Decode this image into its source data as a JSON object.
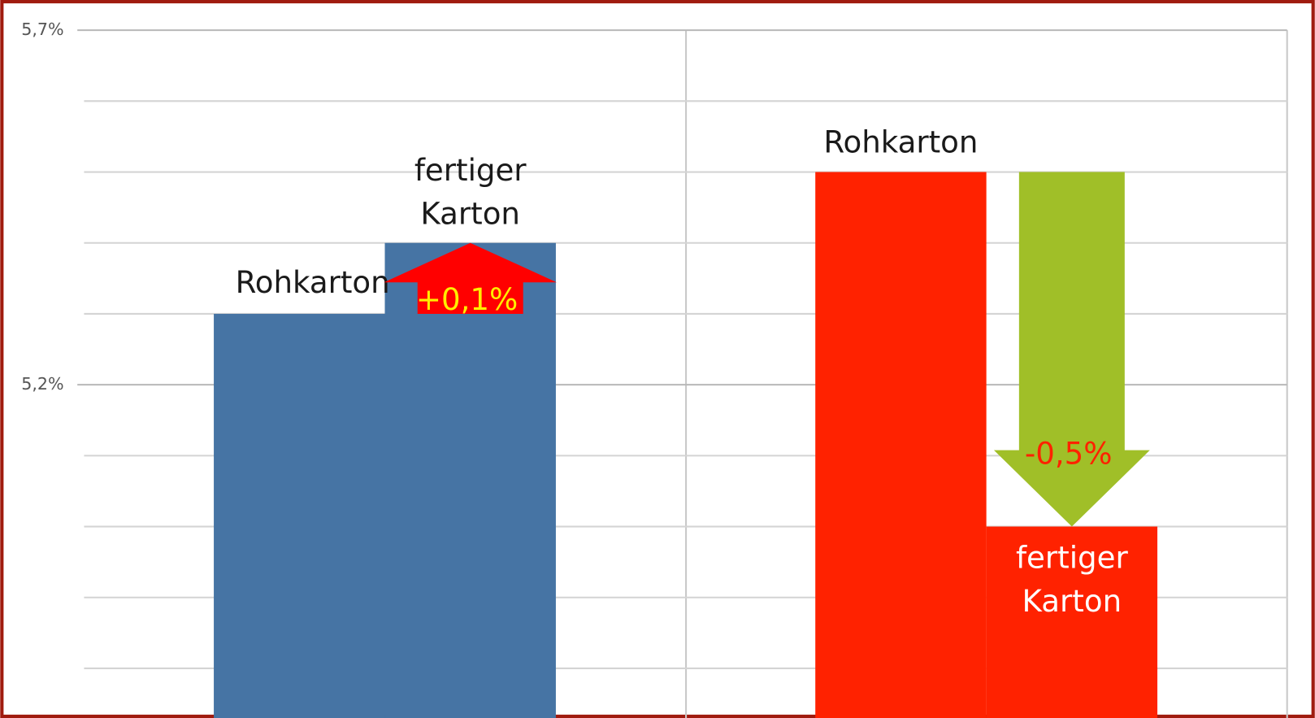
{
  "chart_data": {
    "type": "bar",
    "categories": [
      null,
      null
    ],
    "series": [
      {
        "name": "Rohkarton",
        "values": [
          5.3,
          5.5
        ],
        "colors": [
          "#4674a4",
          "#ff2200"
        ]
      },
      {
        "name": "fertiger Karton",
        "values": [
          5.4,
          5.0
        ],
        "colors": [
          "#4674a4",
          "#ff2200"
        ]
      }
    ],
    "annotations": [
      {
        "text": "+0,1%",
        "arrow_color": "#ff0000",
        "text_color": "#ffee00"
      },
      {
        "text": "-0,5%",
        "arrow_color": "#a0bf28",
        "text_color": "#ff2200"
      }
    ],
    "ylim": [
      4.73,
      5.7
    ],
    "yticks": [
      {
        "value": 5.2,
        "label": "5,2%"
      },
      {
        "value": 5.7,
        "label": "5,7%"
      }
    ],
    "minor_yticks": [
      4.8,
      4.9,
      5.0,
      5.1,
      5.3,
      5.4,
      5.5,
      5.6
    ],
    "grid": true
  }
}
